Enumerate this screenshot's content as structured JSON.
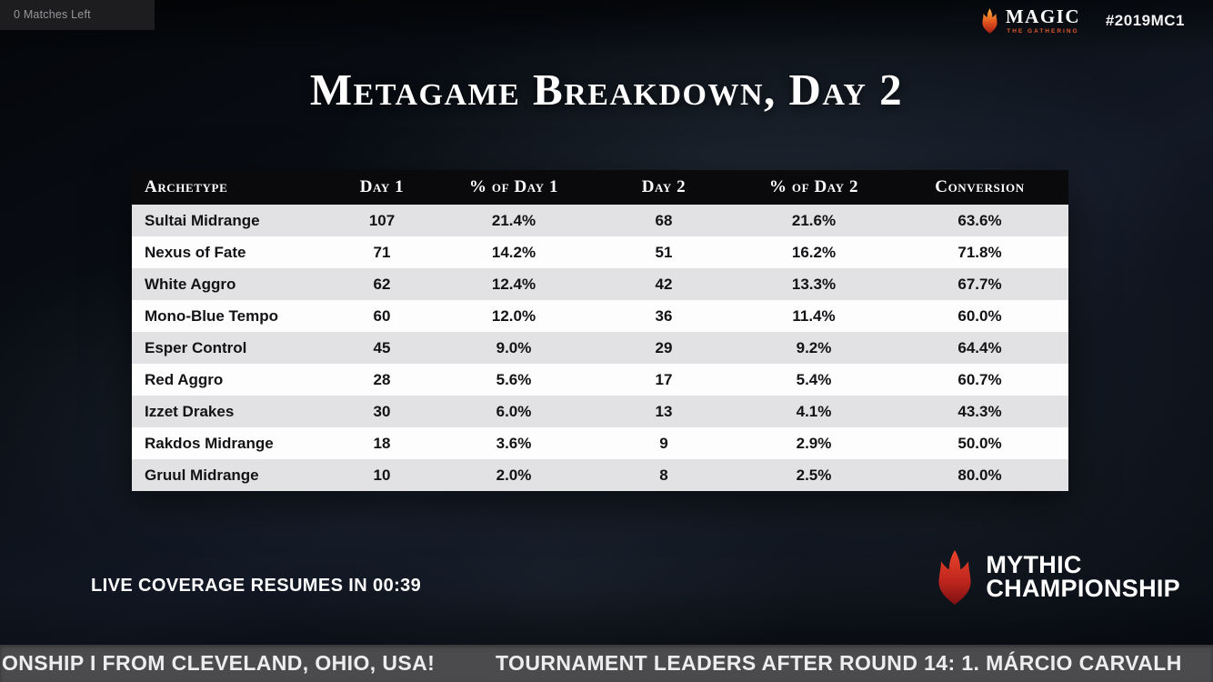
{
  "top_bar": {
    "matches_left": "0 Matches Left",
    "hashtag": "#2019MC1",
    "magic_logo": {
      "title": "MAGIC",
      "subtitle": "THE GATHERING"
    }
  },
  "title": "Metagame Breakdown, Day 2",
  "chart_data": {
    "type": "table",
    "title": "Metagame Breakdown, Day 2",
    "columns": [
      "Archetype",
      "Day 1",
      "% of Day 1",
      "Day 2",
      "% of Day 2",
      "Conversion"
    ],
    "rows": [
      [
        "Sultai Midrange",
        "107",
        "21.4%",
        "68",
        "21.6%",
        "63.6%"
      ],
      [
        "Nexus of Fate",
        "71",
        "14.2%",
        "51",
        "16.2%",
        "71.8%"
      ],
      [
        "White Aggro",
        "62",
        "12.4%",
        "42",
        "13.3%",
        "67.7%"
      ],
      [
        "Mono-Blue Tempo",
        "60",
        "12.0%",
        "36",
        "11.4%",
        "60.0%"
      ],
      [
        "Esper Control",
        "45",
        "9.0%",
        "29",
        "9.2%",
        "64.4%"
      ],
      [
        "Red Aggro",
        "28",
        "5.6%",
        "17",
        "5.4%",
        "60.7%"
      ],
      [
        "Izzet Drakes",
        "30",
        "6.0%",
        "13",
        "4.1%",
        "43.3%"
      ],
      [
        "Rakdos Midrange",
        "18",
        "3.6%",
        "9",
        "2.9%",
        "50.0%"
      ],
      [
        "Gruul Midrange",
        "10",
        "2.0%",
        "8",
        "2.5%",
        "80.0%"
      ]
    ],
    "numeric": {
      "archetypes": [
        "Sultai Midrange",
        "Nexus of Fate",
        "White Aggro",
        "Mono-Blue Tempo",
        "Esper Control",
        "Red Aggro",
        "Izzet Drakes",
        "Rakdos Midrange",
        "Gruul Midrange"
      ],
      "day1": [
        107,
        71,
        62,
        60,
        45,
        28,
        30,
        18,
        10
      ],
      "pct_day1": [
        21.4,
        14.2,
        12.4,
        12.0,
        9.0,
        5.6,
        6.0,
        3.6,
        2.0
      ],
      "day2": [
        68,
        51,
        42,
        36,
        29,
        17,
        13,
        9,
        8
      ],
      "pct_day2": [
        21.6,
        16.2,
        13.3,
        11.4,
        9.2,
        5.4,
        4.1,
        2.9,
        2.5
      ],
      "conversion_pct": [
        63.6,
        71.8,
        67.7,
        60.0,
        64.4,
        60.7,
        43.3,
        50.0,
        80.0
      ]
    }
  },
  "footer": {
    "live_text": "LIVE COVERAGE RESUMES IN 00:39",
    "mythic_logo": {
      "line1": "MYTHIC",
      "line2": "CHAMPIONSHIP"
    }
  },
  "ticker": {
    "left": "ONSHIP I FROM CLEVELAND, OHIO, USA!",
    "right": "TOURNAMENT LEADERS AFTER ROUND 14: 1. MÁRCIO CARVALH"
  },
  "colors": {
    "flame_orange": "#f59b2d",
    "flame_red": "#c1271e",
    "table_header_bg": "#0a0a0d",
    "row_alt_bg": "#e2e2e5",
    "row_bg": "#fdfdfe",
    "ticker_bg": "#4b4b4e",
    "background_dark": "#0b1017"
  }
}
